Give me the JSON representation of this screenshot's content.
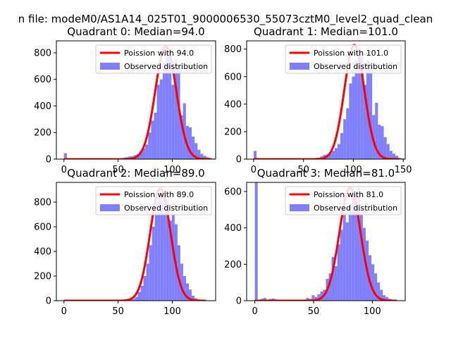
{
  "figure": {
    "suptitle": "n file: modeM0/AS1A14_025T01_9000006530_55073cztM0_level2_quad_clean",
    "colors": {
      "bar": "#8080ff",
      "line": "#ff0000",
      "axes": "#000000",
      "background": "#ffffff"
    }
  },
  "chart_data": [
    {
      "type": "bar",
      "title": "Quadrant 0: Median=94.0",
      "median": 94.0,
      "xlim": [
        -7,
        140
      ],
      "ylim": [
        0,
        890
      ],
      "xticks": [
        0,
        50,
        100
      ],
      "yticks": [
        0,
        200,
        400,
        600,
        800
      ],
      "legend": {
        "position": "top-right",
        "entries": [
          "Poission with 94.0",
          "Observed distribution"
        ]
      },
      "histogram": {
        "bin_start": 0,
        "bin_width": 2.68,
        "values": [
          45,
          4,
          2,
          2,
          2,
          2,
          2,
          2,
          2,
          2,
          2,
          2,
          2,
          2,
          2,
          3,
          4,
          5,
          6,
          8,
          10,
          14,
          20,
          22,
          30,
          40,
          60,
          80,
          110,
          200,
          290,
          350,
          560,
          600,
          720,
          810,
          790,
          560,
          760,
          690,
          330,
          420,
          250,
          240,
          170,
          120,
          70,
          40,
          25,
          15,
          8,
          4
        ]
      },
      "poisson": {
        "mean": 94.0,
        "x_start": 0,
        "x_end": 136,
        "peak": 850
      }
    },
    {
      "type": "bar",
      "title": "Quadrant 1: Median=101.0",
      "median": 101.0,
      "xlim": [
        -7,
        152
      ],
      "ylim": [
        0,
        860
      ],
      "xticks": [
        0,
        50,
        100,
        150
      ],
      "yticks": [
        0,
        200,
        400,
        600,
        800
      ],
      "legend": {
        "position": "top-right",
        "entries": [
          "Poission with 101.0",
          "Observed distribution"
        ]
      },
      "histogram": {
        "bin_start": 0,
        "bin_width": 2.9,
        "values": [
          60,
          4,
          2,
          2,
          2,
          2,
          2,
          2,
          2,
          2,
          2,
          2,
          2,
          2,
          2,
          2,
          2,
          3,
          4,
          5,
          6,
          8,
          10,
          20,
          30,
          35,
          40,
          60,
          80,
          110,
          190,
          290,
          370,
          550,
          600,
          720,
          800,
          750,
          540,
          720,
          700,
          320,
          410,
          250,
          240,
          160,
          110,
          60,
          40,
          25,
          10,
          5
        ]
      },
      "poisson": {
        "mean": 101.0,
        "x_start": 0,
        "x_end": 146,
        "peak": 830
      }
    },
    {
      "type": "bar",
      "title": "Quadrant 2: Median=89.0",
      "median": 89.0,
      "xlim": [
        -7,
        140
      ],
      "ylim": [
        0,
        960
      ],
      "xticks": [
        0,
        50,
        100
      ],
      "yticks": [
        0,
        200,
        400,
        600,
        800
      ],
      "legend": {
        "position": "top-right",
        "entries": [
          "Poission with 89.0",
          "Observed distribution"
        ]
      },
      "histogram": {
        "bin_start": 0,
        "bin_width": 2.62,
        "values": [
          3,
          2,
          2,
          2,
          2,
          2,
          2,
          2,
          2,
          2,
          2,
          2,
          2,
          2,
          2,
          2,
          2,
          2,
          2,
          2,
          3,
          4,
          6,
          10,
          15,
          30,
          70,
          120,
          200,
          300,
          450,
          600,
          720,
          850,
          860,
          900,
          830,
          650,
          700,
          620,
          450,
          300,
          200,
          140,
          90,
          40,
          20,
          10,
          5,
          3,
          2
        ]
      },
      "poisson": {
        "mean": 89.0,
        "x_start": 0,
        "x_end": 131,
        "peak": 910
      }
    },
    {
      "type": "bar",
      "title": "Quadrant 3: Median=81.0",
      "median": 81.0,
      "xlim": [
        -7,
        128
      ],
      "ylim": [
        0,
        650
      ],
      "xticks": [
        0,
        50,
        100
      ],
      "yticks": [
        0,
        200,
        400,
        600
      ],
      "legend": {
        "position": "top-right",
        "entries": [
          "Poission with 81.0",
          "Observed distribution"
        ]
      },
      "histogram": {
        "bin_start": 0,
        "bin_width": 2.42,
        "values": [
          650,
          4,
          10,
          15,
          5,
          10,
          12,
          8,
          5,
          4,
          5,
          5,
          4,
          3,
          4,
          3,
          4,
          5,
          15,
          10,
          30,
          20,
          35,
          50,
          60,
          120,
          150,
          240,
          190,
          310,
          390,
          470,
          430,
          530,
          600,
          580,
          620,
          470,
          400,
          330,
          250,
          200,
          150,
          100,
          60,
          30,
          20,
          10,
          5,
          3
        ]
      },
      "poisson": {
        "mean": 81.0,
        "x_start": 0,
        "x_end": 121,
        "peak": 620
      }
    }
  ]
}
